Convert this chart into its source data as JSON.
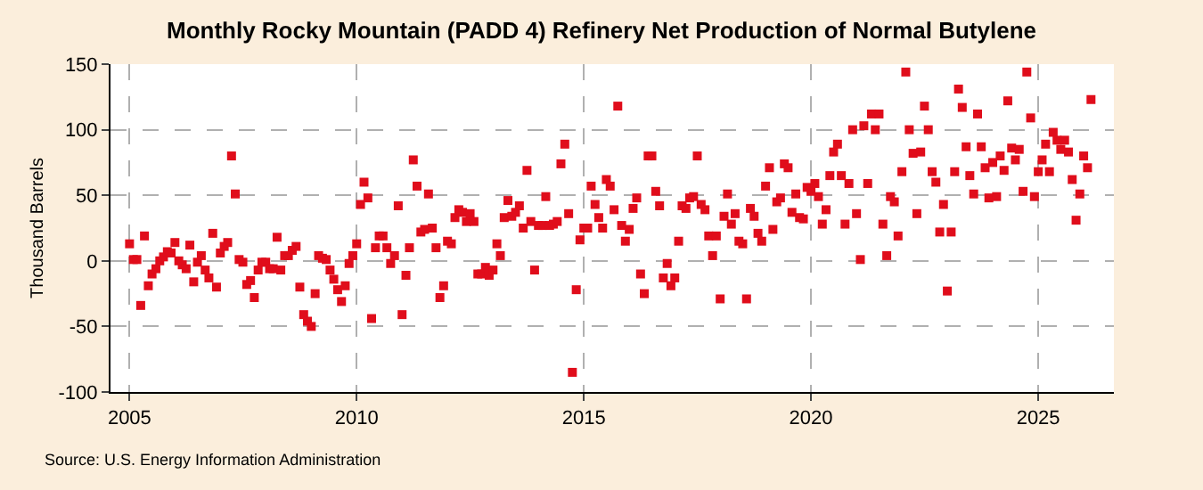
{
  "chart_data": {
    "type": "scatter",
    "title": "Monthly Rocky Mountain (PADD 4) Refinery Net Production of Normal Butylene",
    "ylabel": "Thousand Barrels",
    "annotations": [
      "Source: U.S. Energy Information Administration"
    ],
    "x": [
      "2005-01",
      "2005-02",
      "2005-03",
      "2005-04",
      "2005-05",
      "2005-06",
      "2005-07",
      "2005-08",
      "2005-09",
      "2005-10",
      "2005-11",
      "2005-12",
      "2006-01",
      "2006-02",
      "2006-03",
      "2006-04",
      "2006-05",
      "2006-06",
      "2006-07",
      "2006-08",
      "2006-09",
      "2006-10",
      "2006-11",
      "2006-12",
      "2007-01",
      "2007-02",
      "2007-03",
      "2007-04",
      "2007-05",
      "2007-06",
      "2007-07",
      "2007-08",
      "2007-09",
      "2007-10",
      "2007-11",
      "2007-12",
      "2008-01",
      "2008-02",
      "2008-03",
      "2008-04",
      "2008-05",
      "2008-06",
      "2008-07",
      "2008-08",
      "2008-09",
      "2008-10",
      "2008-11",
      "2008-12",
      "2009-01",
      "2009-02",
      "2009-03",
      "2009-04",
      "2009-05",
      "2009-06",
      "2009-07",
      "2009-08",
      "2009-09",
      "2009-10",
      "2009-11",
      "2009-12",
      "2010-01",
      "2010-02",
      "2010-03",
      "2010-04",
      "2010-05",
      "2010-06",
      "2010-07",
      "2010-08",
      "2010-09",
      "2010-10",
      "2010-11",
      "2010-12",
      "2011-01",
      "2011-02",
      "2011-03",
      "2011-04",
      "2011-05",
      "2011-06",
      "2011-07",
      "2011-08",
      "2011-09",
      "2011-10",
      "2011-11",
      "2011-12",
      "2012-01",
      "2012-02",
      "2012-03",
      "2012-04",
      "2012-05",
      "2012-06",
      "2012-07",
      "2012-08",
      "2012-09",
      "2012-10",
      "2012-11",
      "2012-12",
      "2013-01",
      "2013-02",
      "2013-03",
      "2013-04",
      "2013-05",
      "2013-06",
      "2013-07",
      "2013-08",
      "2013-09",
      "2013-10",
      "2013-11",
      "2013-12",
      "2014-01",
      "2014-02",
      "2014-03",
      "2014-04",
      "2014-05",
      "2014-06",
      "2014-07",
      "2014-08",
      "2014-09",
      "2014-10",
      "2014-11",
      "2014-12",
      "2015-01",
      "2015-02",
      "2015-03",
      "2015-04",
      "2015-05",
      "2015-06",
      "2015-07",
      "2015-08",
      "2015-09",
      "2015-10",
      "2015-11",
      "2015-12",
      "2016-01",
      "2016-02",
      "2016-03",
      "2016-04",
      "2016-05",
      "2016-06",
      "2016-07",
      "2016-08",
      "2016-09",
      "2016-10",
      "2016-11",
      "2016-12",
      "2017-01",
      "2017-02",
      "2017-03",
      "2017-04",
      "2017-05",
      "2017-06",
      "2017-07",
      "2017-08",
      "2017-09",
      "2017-10",
      "2017-11",
      "2017-12",
      "2018-01",
      "2018-02",
      "2018-03",
      "2018-04",
      "2018-05",
      "2018-06",
      "2018-07",
      "2018-08",
      "2018-09",
      "2018-10",
      "2018-11",
      "2018-12",
      "2019-01",
      "2019-02",
      "2019-03",
      "2019-04",
      "2019-05",
      "2019-06",
      "2019-07",
      "2019-08",
      "2019-09",
      "2019-10",
      "2019-11",
      "2019-12",
      "2020-01",
      "2020-02",
      "2020-03",
      "2020-04",
      "2020-05",
      "2020-06",
      "2020-07",
      "2020-08",
      "2020-09",
      "2020-10",
      "2020-11",
      "2020-12",
      "2021-01",
      "2021-02",
      "2021-03",
      "2021-04",
      "2021-05",
      "2021-06",
      "2021-07",
      "2021-08",
      "2021-09",
      "2021-10",
      "2021-11",
      "2021-12",
      "2022-01",
      "2022-02",
      "2022-03",
      "2022-04",
      "2022-05",
      "2022-06",
      "2022-07",
      "2022-08",
      "2022-09",
      "2022-10",
      "2022-11",
      "2022-12",
      "2023-01",
      "2023-02",
      "2023-03",
      "2023-04",
      "2023-05",
      "2023-06",
      "2023-07",
      "2023-08",
      "2023-09",
      "2023-10",
      "2023-11",
      "2023-12",
      "2024-01",
      "2024-02",
      "2024-03",
      "2024-04",
      "2024-05",
      "2024-06",
      "2024-07",
      "2024-08",
      "2024-09",
      "2024-10",
      "2024-11",
      "2024-12",
      "2025-01",
      "2025-02",
      "2025-03",
      "2025-04",
      "2025-05",
      "2025-06",
      "2025-07",
      "2025-08",
      "2025-09",
      "2025-10",
      "2025-11",
      "2025-12",
      "2026-01",
      "2026-02",
      "2026-03"
    ],
    "series": [
      {
        "color": "#e00d1b",
        "values": [
          13,
          1,
          1,
          -34,
          19,
          -19,
          -10,
          -6,
          0,
          3,
          7,
          6,
          14,
          0,
          -3,
          -6,
          12,
          -16,
          -1,
          4,
          -7,
          -13,
          21,
          -20,
          6,
          11,
          14,
          80,
          51,
          1,
          -1,
          -18,
          -15,
          -28,
          -7,
          -1,
          -1,
          -6,
          -6,
          18,
          -7,
          4,
          4,
          8,
          11,
          -20,
          -41,
          -46,
          -50,
          -25,
          4,
          2,
          1,
          -7,
          -14,
          -22,
          -31,
          -19,
          -2,
          4,
          13,
          43,
          60,
          48,
          -44,
          10,
          19,
          19,
          10,
          -2,
          4,
          42,
          -41,
          -11,
          10,
          77,
          57,
          22,
          24,
          51,
          25,
          10,
          -28,
          -19,
          15,
          13,
          33,
          39,
          37,
          30,
          36,
          30,
          -10,
          -10,
          -5,
          -11,
          -7,
          13,
          4,
          33,
          46,
          34,
          37,
          42,
          25,
          69,
          30,
          -7,
          27,
          27,
          49,
          27,
          28,
          30,
          74,
          89,
          36,
          -85,
          -22,
          16,
          25,
          25,
          57,
          43,
          33,
          25,
          62,
          57,
          39,
          118,
          27,
          15,
          24,
          40,
          48,
          -10,
          -25,
          80,
          80,
          53,
          42,
          -13,
          -2,
          -19,
          -13,
          15,
          42,
          40,
          48,
          49,
          80,
          43,
          39,
          19,
          4,
          19,
          -29,
          34,
          51,
          28,
          36,
          15,
          13,
          -29,
          40,
          34,
          21,
          15,
          57,
          71,
          24,
          45,
          48,
          74,
          71,
          37,
          51,
          33,
          32,
          56,
          53,
          59,
          49,
          28,
          39,
          65,
          83,
          89,
          65,
          28,
          59,
          100,
          36,
          1,
          103,
          59,
          112,
          100,
          112,
          28,
          4,
          49,
          45,
          19,
          68,
          144,
          100,
          82,
          36,
          83,
          118,
          100,
          68,
          60,
          22,
          43,
          -23,
          22,
          68,
          131,
          117,
          87,
          65,
          51,
          112,
          87,
          71,
          48,
          75,
          49,
          80,
          69,
          122,
          86,
          77,
          85,
          53,
          144,
          109,
          49,
          68,
          77,
          89,
          68,
          98,
          92,
          85,
          92,
          83,
          62,
          31,
          51,
          80,
          71,
          123
        ]
      }
    ],
    "xlim": [
      "2004-08",
      "2026-09"
    ],
    "xticks": [
      {
        "value": "2005-01-01",
        "label": "2005"
      },
      {
        "value": "2010-01-01",
        "label": "2010"
      },
      {
        "value": "2015-01-01",
        "label": "2015"
      },
      {
        "value": "2020-01-01",
        "label": "2020"
      },
      {
        "value": "2025-01-01",
        "label": "2025"
      }
    ],
    "ylim": [
      -100,
      150
    ],
    "yticks": [
      -100,
      -50,
      0,
      50,
      100,
      150
    ],
    "grid": true,
    "marker": "square"
  }
}
